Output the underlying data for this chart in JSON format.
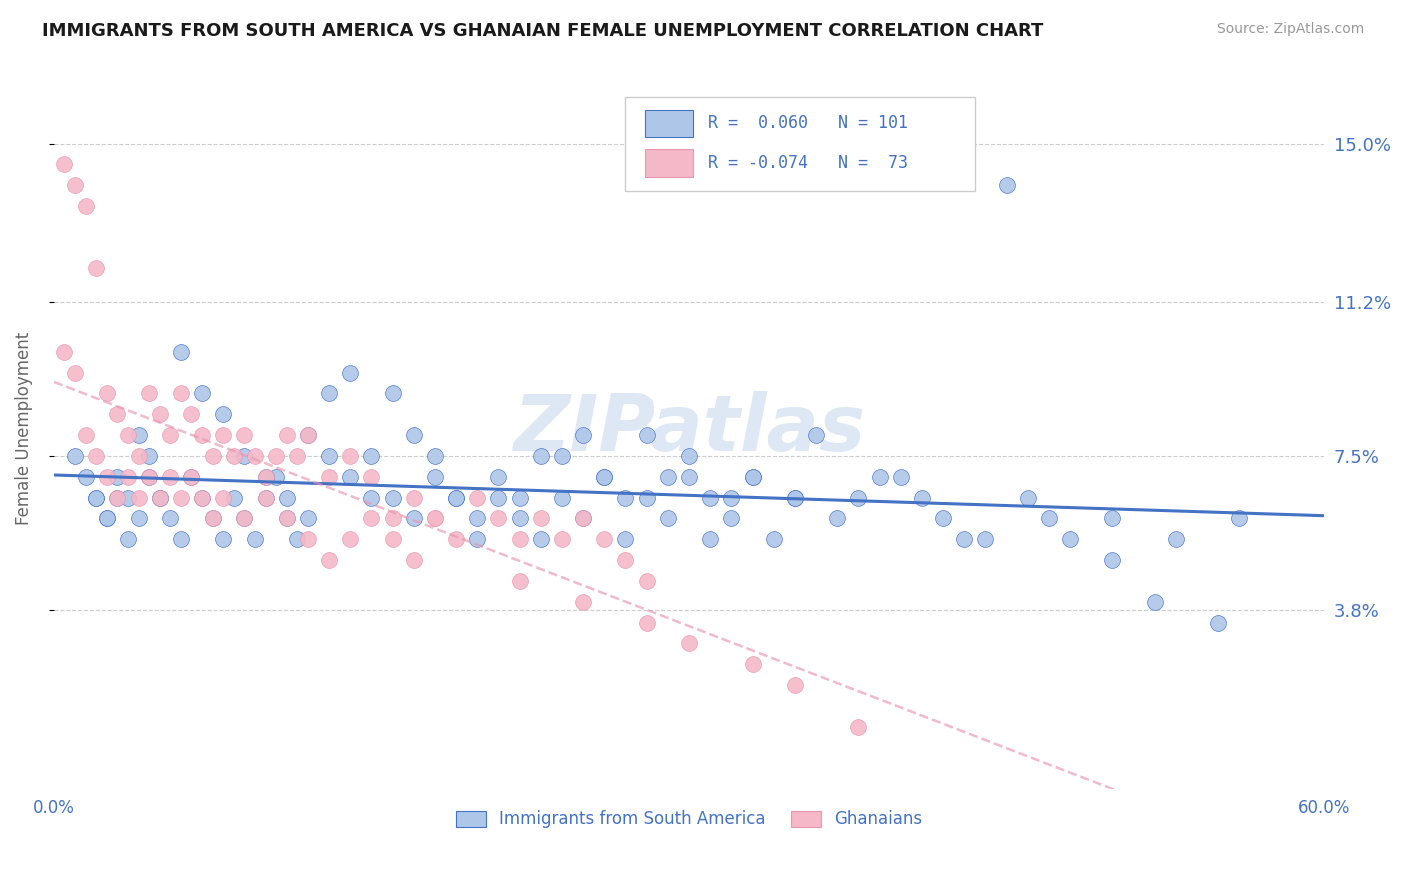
{
  "title": "IMMIGRANTS FROM SOUTH AMERICA VS GHANAIAN FEMALE UNEMPLOYMENT CORRELATION CHART",
  "source": "Source: ZipAtlas.com",
  "ylabel": "Female Unemployment",
  "xlim": [
    0.0,
    0.6
  ],
  "ylim": [
    -0.005,
    0.168
  ],
  "ytick_labels": [
    "3.8%",
    "7.5%",
    "11.2%",
    "15.0%"
  ],
  "ytick_values": [
    0.038,
    0.075,
    0.112,
    0.15
  ],
  "hline_values": [
    0.038,
    0.075,
    0.112,
    0.15
  ],
  "color_blue": "#aec6e8",
  "color_pink": "#f4b8c8",
  "line_blue": "#4472c4",
  "line_pink": "#e896b0",
  "text_color": "#4472c4",
  "blue_series_x": [
    0.02,
    0.025,
    0.03,
    0.035,
    0.04,
    0.045,
    0.05,
    0.055,
    0.06,
    0.065,
    0.07,
    0.075,
    0.08,
    0.085,
    0.09,
    0.095,
    0.1,
    0.105,
    0.11,
    0.115,
    0.12,
    0.13,
    0.14,
    0.15,
    0.16,
    0.17,
    0.18,
    0.19,
    0.2,
    0.21,
    0.22,
    0.23,
    0.24,
    0.25,
    0.26,
    0.27,
    0.28,
    0.29,
    0.3,
    0.31,
    0.32,
    0.33,
    0.34,
    0.35,
    0.36,
    0.38,
    0.4,
    0.42,
    0.44,
    0.46,
    0.48,
    0.5,
    0.52,
    0.55,
    0.01,
    0.015,
    0.02,
    0.025,
    0.03,
    0.035,
    0.04,
    0.045,
    0.05,
    0.06,
    0.07,
    0.08,
    0.09,
    0.1,
    0.11,
    0.12,
    0.13,
    0.14,
    0.15,
    0.16,
    0.17,
    0.18,
    0.19,
    0.2,
    0.21,
    0.22,
    0.23,
    0.24,
    0.25,
    0.26,
    0.27,
    0.28,
    0.29,
    0.3,
    0.31,
    0.32,
    0.33,
    0.35,
    0.37,
    0.39,
    0.41,
    0.43,
    0.45,
    0.47,
    0.5,
    0.53,
    0.56
  ],
  "blue_series_y": [
    0.065,
    0.06,
    0.065,
    0.055,
    0.06,
    0.07,
    0.065,
    0.06,
    0.055,
    0.07,
    0.065,
    0.06,
    0.055,
    0.065,
    0.06,
    0.055,
    0.065,
    0.07,
    0.06,
    0.055,
    0.06,
    0.075,
    0.07,
    0.065,
    0.09,
    0.08,
    0.075,
    0.065,
    0.06,
    0.065,
    0.06,
    0.075,
    0.065,
    0.08,
    0.07,
    0.065,
    0.08,
    0.07,
    0.075,
    0.065,
    0.06,
    0.07,
    0.055,
    0.065,
    0.08,
    0.065,
    0.07,
    0.06,
    0.055,
    0.065,
    0.055,
    0.06,
    0.04,
    0.035,
    0.075,
    0.07,
    0.065,
    0.06,
    0.07,
    0.065,
    0.08,
    0.075,
    0.065,
    0.1,
    0.09,
    0.085,
    0.075,
    0.07,
    0.065,
    0.08,
    0.09,
    0.095,
    0.075,
    0.065,
    0.06,
    0.07,
    0.065,
    0.055,
    0.07,
    0.065,
    0.055,
    0.075,
    0.06,
    0.07,
    0.055,
    0.065,
    0.06,
    0.07,
    0.055,
    0.065,
    0.07,
    0.065,
    0.06,
    0.07,
    0.065,
    0.055,
    0.14,
    0.06,
    0.05,
    0.055,
    0.06
  ],
  "pink_series_x": [
    0.005,
    0.01,
    0.015,
    0.02,
    0.025,
    0.03,
    0.035,
    0.04,
    0.045,
    0.05,
    0.055,
    0.06,
    0.065,
    0.07,
    0.075,
    0.08,
    0.085,
    0.09,
    0.095,
    0.1,
    0.105,
    0.11,
    0.115,
    0.12,
    0.13,
    0.14,
    0.15,
    0.16,
    0.17,
    0.18,
    0.19,
    0.2,
    0.21,
    0.22,
    0.23,
    0.24,
    0.25,
    0.26,
    0.27,
    0.28,
    0.005,
    0.01,
    0.015,
    0.02,
    0.025,
    0.03,
    0.035,
    0.04,
    0.045,
    0.05,
    0.055,
    0.06,
    0.065,
    0.07,
    0.075,
    0.08,
    0.09,
    0.1,
    0.11,
    0.12,
    0.13,
    0.14,
    0.15,
    0.16,
    0.17,
    0.18,
    0.22,
    0.25,
    0.28,
    0.3,
    0.33,
    0.35,
    0.38
  ],
  "pink_series_y": [
    0.145,
    0.14,
    0.135,
    0.12,
    0.09,
    0.085,
    0.08,
    0.075,
    0.09,
    0.085,
    0.08,
    0.09,
    0.085,
    0.08,
    0.075,
    0.08,
    0.075,
    0.08,
    0.075,
    0.07,
    0.075,
    0.08,
    0.075,
    0.08,
    0.07,
    0.075,
    0.07,
    0.06,
    0.065,
    0.06,
    0.055,
    0.065,
    0.06,
    0.055,
    0.06,
    0.055,
    0.06,
    0.055,
    0.05,
    0.045,
    0.1,
    0.095,
    0.08,
    0.075,
    0.07,
    0.065,
    0.07,
    0.065,
    0.07,
    0.065,
    0.07,
    0.065,
    0.07,
    0.065,
    0.06,
    0.065,
    0.06,
    0.065,
    0.06,
    0.055,
    0.05,
    0.055,
    0.06,
    0.055,
    0.05,
    0.06,
    0.045,
    0.04,
    0.035,
    0.03,
    0.025,
    0.02,
    0.01
  ]
}
